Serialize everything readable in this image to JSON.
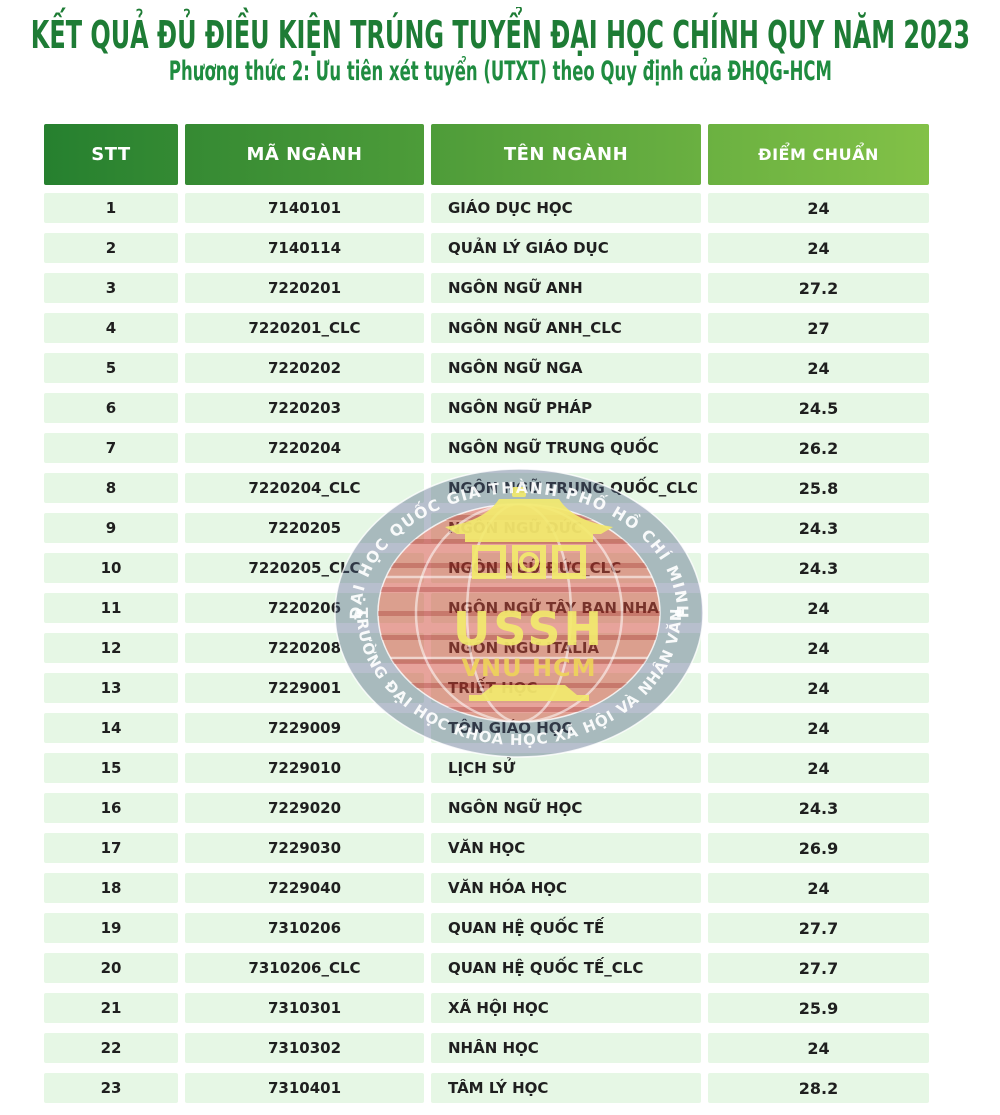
{
  "page": {
    "title": "KẾT QUẢ ĐỦ ĐIỀU KIỆN TRÚNG TUYỂN ĐẠI HỌC CHÍNH QUY NĂM 2023",
    "subtitle": "Phương thức 2: Ưu tiên xét tuyển (UTXT) theo Quy định của ĐHQG-HCM"
  },
  "table": {
    "columns": [
      "STT",
      "MÃ NGÀNH",
      "TÊN NGÀNH",
      "ĐIỂM CHUẨN"
    ],
    "rows": [
      [
        "1",
        "7140101",
        "GIÁO DỤC HỌC",
        "24"
      ],
      [
        "2",
        "7140114",
        "QUẢN LÝ GIÁO DỤC",
        "24"
      ],
      [
        "3",
        "7220201",
        "NGÔN NGỮ ANH",
        "27.2"
      ],
      [
        "4",
        "7220201_CLC",
        "NGÔN NGỮ ANH_CLC",
        "27"
      ],
      [
        "5",
        "7220202",
        "NGÔN NGỮ NGA",
        "24"
      ],
      [
        "6",
        "7220203",
        "NGÔN NGỮ PHÁP",
        "24.5"
      ],
      [
        "7",
        "7220204",
        "NGÔN NGỮ TRUNG QUỐC",
        "26.2"
      ],
      [
        "8",
        "7220204_CLC",
        "NGÔN NGỮ TRUNG QUỐC_CLC",
        "25.8"
      ],
      [
        "9",
        "7220205",
        "NGÔN NGỮ ĐỨC",
        "24.3"
      ],
      [
        "10",
        "7220205_CLC",
        "NGÔN NGỮ ĐỨC_CLC",
        "24.3"
      ],
      [
        "11",
        "7220206",
        "NGÔN NGỮ TÂY BAN NHA",
        "24"
      ],
      [
        "12",
        "7220208",
        "NGÔN NGỮ ITALIA",
        "24"
      ],
      [
        "13",
        "7229001",
        "TRIẾT HỌC",
        "24"
      ],
      [
        "14",
        "7229009",
        "TÔN GIÁO HỌC",
        "24"
      ],
      [
        "15",
        "7229010",
        "LỊCH SỬ",
        "24"
      ],
      [
        "16",
        "7229020",
        "NGÔN NGỮ HỌC",
        "24.3"
      ],
      [
        "17",
        "7229030",
        "VĂN HỌC",
        "26.9"
      ],
      [
        "18",
        "7229040",
        "VĂN HÓA HỌC",
        "24"
      ],
      [
        "19",
        "7310206",
        "QUAN HỆ QUỐC TẾ",
        "27.7"
      ],
      [
        "20",
        "7310206_CLC",
        "QUAN HỆ QUỐC TẾ_CLC",
        "27.7"
      ],
      [
        "21",
        "7310301",
        "XÃ HỘI HỌC",
        "25.9"
      ],
      [
        "22",
        "7310302",
        "NHÂN HỌC",
        "24"
      ],
      [
        "23",
        "7310401",
        "TÂM LÝ HỌC",
        "28.2"
      ]
    ]
  },
  "watermark": {
    "top_text": "ĐẠI HỌC QUỐC GIA THÀNH PHỐ HỒ CHÍ MINH",
    "bottom_text": "TRƯỜNG ĐẠI HỌC KHOA HỌC XÃ HỘI VÀ NHÂN VĂN",
    "acronym": "USSH",
    "org": "VNU HCM"
  },
  "colors": {
    "title_green": "#1E7C35",
    "subtitle_green": "#1F8C40",
    "header_gradient_start": "#26802F",
    "header_gradient_end": "#82C147",
    "row_bg": "#E6F7E5",
    "row_text": "#1F1F1F",
    "watermark_ring_blue": "#5A6E8C",
    "watermark_disc_red": "#CF4837",
    "watermark_yellow": "#F2E96E"
  }
}
